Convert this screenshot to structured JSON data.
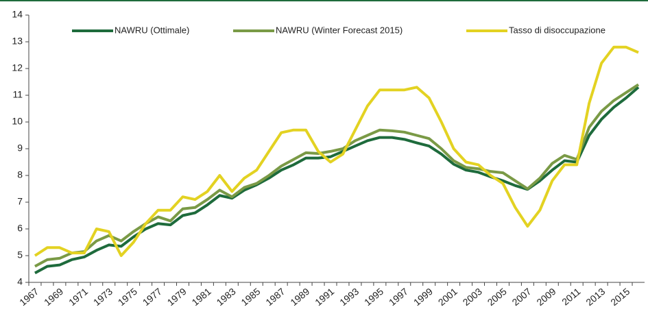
{
  "chart_data": {
    "type": "line",
    "categories": [
      "1967",
      null,
      "1969",
      null,
      "1971",
      null,
      "1973",
      null,
      "1975",
      null,
      "1977",
      null,
      "1979",
      null,
      "1981",
      null,
      "1983",
      null,
      "1985",
      null,
      "1987",
      null,
      "1989",
      null,
      "1991",
      null,
      "1993",
      null,
      "1995",
      null,
      "1997",
      null,
      "1999",
      null,
      "2001",
      null,
      "2003",
      null,
      "2005",
      null,
      "2007",
      null,
      "2009",
      null,
      "2011",
      null,
      "2013",
      null,
      "2015",
      null
    ],
    "series": [
      {
        "name": "NAWRU (Ottimale)",
        "color": "#1e6b3c",
        "values": [
          4.35,
          4.6,
          4.65,
          4.85,
          4.95,
          5.2,
          5.4,
          5.35,
          5.7,
          6.0,
          6.2,
          6.15,
          6.5,
          6.6,
          6.9,
          7.25,
          7.15,
          7.45,
          7.65,
          7.9,
          8.2,
          8.4,
          8.65,
          8.65,
          8.7,
          8.9,
          9.1,
          9.3,
          9.42,
          9.42,
          9.35,
          9.22,
          9.1,
          8.8,
          8.42,
          8.2,
          8.12,
          7.95,
          7.8,
          7.62,
          7.48,
          7.8,
          8.2,
          8.55,
          8.5,
          9.5,
          10.1,
          10.55,
          10.9,
          11.3
        ]
      },
      {
        "name": "NAWRU (Winter Forecast 2015)",
        "color": "#7a9a46",
        "values": [
          4.6,
          4.85,
          4.9,
          5.1,
          5.15,
          5.55,
          5.75,
          5.55,
          5.9,
          6.2,
          6.45,
          6.3,
          6.75,
          6.8,
          7.1,
          7.45,
          7.2,
          7.55,
          7.7,
          8.0,
          8.35,
          8.6,
          8.85,
          8.82,
          8.9,
          9.0,
          9.3,
          9.5,
          9.7,
          9.67,
          9.62,
          9.5,
          9.38,
          9.0,
          8.55,
          8.3,
          8.25,
          8.15,
          8.1,
          7.8,
          7.5,
          7.9,
          8.45,
          8.75,
          8.6,
          9.8,
          10.4,
          10.8,
          11.1,
          11.4
        ]
      },
      {
        "name": "Tasso di disoccupazione",
        "color": "#e3d222",
        "values": [
          5.0,
          5.3,
          5.3,
          5.1,
          5.1,
          6.0,
          5.9,
          5.0,
          5.5,
          6.2,
          6.7,
          6.7,
          7.2,
          7.1,
          7.4,
          8.0,
          7.4,
          7.9,
          8.2,
          8.9,
          9.6,
          9.7,
          9.7,
          8.9,
          8.5,
          8.8,
          9.7,
          10.6,
          11.2,
          11.2,
          11.2,
          11.3,
          10.9,
          10.0,
          9.0,
          8.5,
          8.4,
          8.0,
          7.7,
          6.8,
          6.1,
          6.7,
          7.8,
          8.4,
          8.4,
          10.7,
          12.2,
          12.8,
          12.8,
          12.6
        ]
      }
    ],
    "ylim": [
      4,
      14
    ],
    "yticks": [
      4,
      5,
      6,
      7,
      8,
      9,
      10,
      11,
      12,
      13,
      14
    ],
    "grid": false
  }
}
